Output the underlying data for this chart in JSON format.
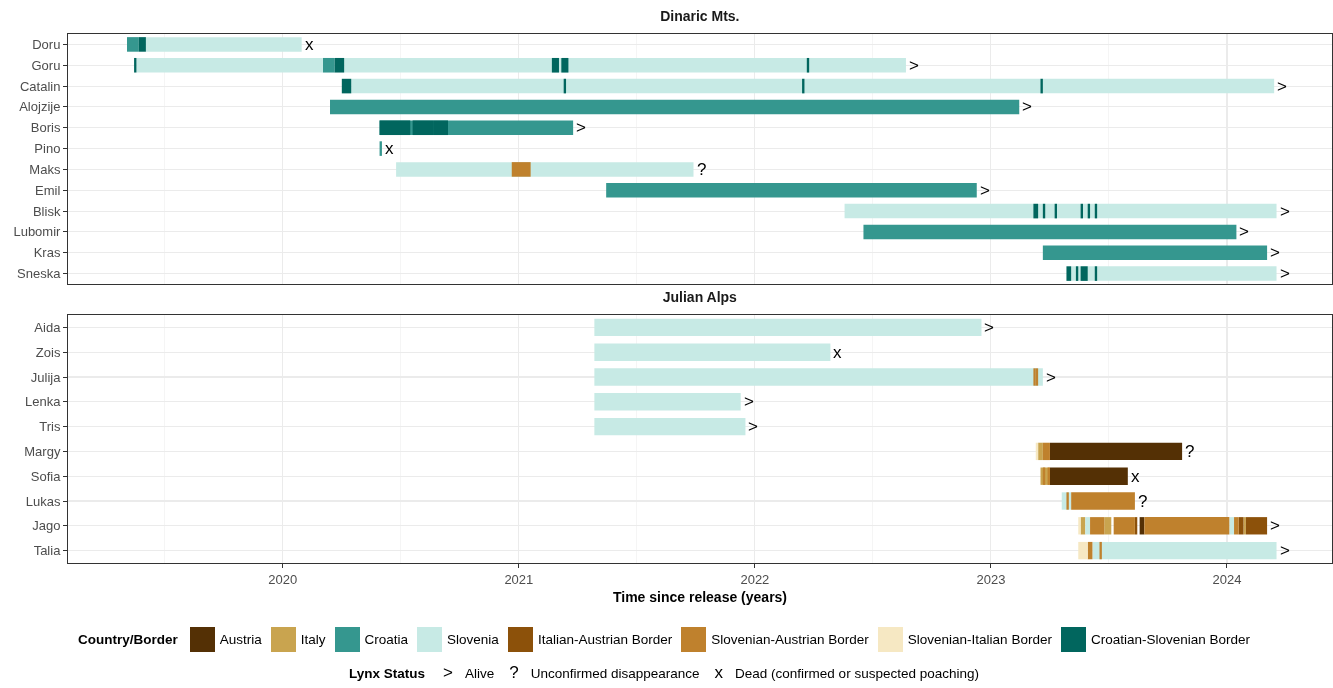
{
  "chart_data": [
    {
      "type": "bar",
      "title": "Dinaric Mts.",
      "orientation": "horizontal",
      "grid": true,
      "legend": "bottom",
      "legend_title": "Country/Border",
      "tick_labels": "y",
      "xlim": [
        2019.09,
        2024.445
      ],
      "xticks": [
        2020,
        2021,
        2022,
        2023,
        2024
      ],
      "categories": [
        "Doru",
        "Goru",
        "Catalin",
        "Alojzije",
        "Boris",
        "Pino",
        "Maks",
        "Emil",
        "Blisk",
        "Lubomir",
        "Kras",
        "Sneska"
      ],
      "series": [
        {
          "name": "Croatia",
          "color": "#35978f",
          "base": [
            2019.34,
            2020.17,
            null,
            2020.2,
            2020.41,
            2020.41,
            null,
            2021.37,
            null,
            2022.46,
            2023.22,
            null
          ],
          "values": [
            0.05,
            0.05,
            null,
            2.92,
            0.82,
            0.01,
            null,
            1.57,
            null,
            1.58,
            0.95,
            null
          ]
        },
        {
          "name": "Slovenia",
          "color": "#c7eae5",
          "base": [
            2019.42,
            2019.38,
            2020.29,
            null,
            null,
            null,
            2020.48,
            null,
            2022.38,
            null,
            null,
            2023.34
          ],
          "values": [
            0.66,
            0.79,
            3.91,
            null,
            null,
            null,
            1.26,
            null,
            1.83,
            null,
            null,
            0.87
          ]
        },
        {
          "color": "#c7eae5",
          "base": [
            null,
            2020.26,
            null,
            null,
            null,
            null,
            null,
            null,
            null,
            null,
            null,
            null
          ],
          "values": [
            null,
            2.38,
            null,
            null,
            null,
            null,
            null,
            null,
            null,
            null,
            null,
            null
          ]
        },
        {
          "name": "Slovenian-Austrian Border",
          "color": "#bf812d",
          "base": [
            null,
            null,
            null,
            null,
            null,
            null,
            2020.97,
            null,
            null,
            null,
            null,
            null
          ],
          "values": [
            null,
            null,
            null,
            null,
            null,
            null,
            0.08,
            null,
            null,
            null,
            null,
            null
          ]
        },
        {
          "name": "Croatian-Slovenian Border",
          "color": "#01665e",
          "base": [
            2019.39,
            2019.37,
            2020.25,
            null,
            2020.41,
            null,
            null,
            null,
            2023.18,
            null,
            null,
            2023.32
          ],
          "values": [
            0.03,
            0.01,
            0.04,
            null,
            0.13,
            null,
            null,
            null,
            0.02,
            null,
            null,
            0.02
          ]
        },
        {
          "color": "#01665e",
          "base": [
            null,
            2020.22,
            2021.19,
            null,
            2020.55,
            null,
            null,
            null,
            2023.22,
            null,
            null,
            2023.36
          ],
          "values": [
            null,
            0.04,
            0.01,
            null,
            0.09,
            null,
            null,
            null,
            0.01,
            null,
            null,
            0.01
          ]
        },
        {
          "color": "#01665e",
          "base": [
            null,
            2021.14,
            2022.2,
            null,
            2020.64,
            null,
            null,
            null,
            2023.27,
            null,
            null,
            2023.38
          ],
          "values": [
            null,
            0.03,
            0.01,
            null,
            0.06,
            null,
            null,
            null,
            0.01,
            null,
            null,
            0.03
          ]
        },
        {
          "color": "#01665e",
          "base": [
            null,
            2021.18,
            2023.21,
            null,
            null,
            null,
            null,
            null,
            2023.38,
            null,
            null,
            2023.44
          ],
          "values": [
            null,
            0.03,
            0.01,
            null,
            null,
            null,
            null,
            null,
            0.01,
            null,
            null,
            0.01
          ]
        },
        {
          "color": "#01665e",
          "base": [
            null,
            2022.22,
            null,
            null,
            null,
            null,
            null,
            null,
            2023.41,
            null,
            null,
            null
          ],
          "values": [
            null,
            0.01,
            null,
            null,
            null,
            null,
            null,
            null,
            0.01,
            null,
            null,
            null
          ]
        },
        {
          "color": "#01665e",
          "base": [
            null,
            null,
            null,
            null,
            null,
            null,
            null,
            null,
            2023.44,
            null,
            null,
            null
          ],
          "values": [
            null,
            null,
            null,
            null,
            null,
            null,
            null,
            null,
            0.01,
            null,
            null,
            null
          ]
        }
      ],
      "annotations": [
        {
          "text": "x",
          "x": 2020.08,
          "y": "Doru"
        },
        {
          "text": ">",
          "x": 2022.64,
          "y": "Goru"
        },
        {
          "text": ">",
          "x": 2024.2,
          "y": "Catalin"
        },
        {
          "text": ">",
          "x": 2023.12,
          "y": "Alojzije"
        },
        {
          "text": ">",
          "x": 2021.23,
          "y": "Boris"
        },
        {
          "text": "x",
          "x": 2020.42,
          "y": "Pino"
        },
        {
          "text": "?",
          "x": 2021.74,
          "y": "Maks"
        },
        {
          "text": ">",
          "x": 2022.94,
          "y": "Emil"
        },
        {
          "text": ">",
          "x": 2024.21,
          "y": "Blisk"
        },
        {
          "text": ">",
          "x": 2024.04,
          "y": "Lubomir"
        },
        {
          "text": ">",
          "x": 2024.17,
          "y": "Kras"
        },
        {
          "text": ">",
          "x": 2024.21,
          "y": "Sneska"
        }
      ]
    },
    {
      "type": "bar",
      "title": "Julian Alps",
      "xlabel": "Time since release (years)",
      "orientation": "horizontal",
      "grid": true,
      "legend": "bottom",
      "legend_title": "Lynx Status",
      "xlim": [
        2019.09,
        2024.445
      ],
      "xticks": [
        2020,
        2021,
        2022,
        2023,
        2024
      ],
      "categories": [
        "Aida",
        "Zois",
        "Julija",
        "Lenka",
        "Tris",
        "Margy",
        "Sofia",
        "Lukas",
        "Jago",
        "Talia"
      ],
      "series": [
        {
          "name": "Austria",
          "color": "#543005",
          "base": [
            null,
            null,
            null,
            null,
            null,
            2023.25,
            2023.25,
            null,
            2023.63,
            null
          ],
          "values": [
            null,
            null,
            null,
            null,
            null,
            0.56,
            0.33,
            null,
            0.02,
            null
          ]
        },
        {
          "name": "Italy",
          "color": "#c9a44f",
          "base": [
            null,
            null,
            null,
            null,
            null,
            2023.2,
            2023.21,
            null,
            2023.38,
            null
          ],
          "values": [
            null,
            null,
            null,
            null,
            null,
            0.02,
            0.04,
            null,
            0.02,
            null
          ]
        },
        {
          "color": "#c9a44f",
          "base": [
            null,
            null,
            null,
            null,
            null,
            null,
            null,
            null,
            2023.48,
            null
          ],
          "values": [
            null,
            null,
            null,
            null,
            null,
            null,
            null,
            null,
            0.03,
            null
          ]
        },
        {
          "color": "#c9a44f",
          "base": [
            null,
            null,
            null,
            null,
            null,
            null,
            null,
            null,
            2024.07,
            null
          ],
          "values": [
            null,
            null,
            null,
            null,
            null,
            null,
            null,
            null,
            0.01,
            null
          ]
        },
        {
          "name": "Slovenia",
          "color": "#c7eae5",
          "base": [
            2021.32,
            2021.32,
            2021.32,
            2021.32,
            2021.32,
            null,
            null,
            2023.3,
            2023.4,
            2023.43
          ],
          "values": [
            1.64,
            1.0,
            1.9,
            0.62,
            0.64,
            null,
            null,
            0.04,
            0.02,
            0.78
          ]
        },
        {
          "color": "#c7eae5",
          "base": [
            null,
            null,
            null,
            null,
            null,
            null,
            null,
            null,
            2024.01,
            null
          ],
          "values": [
            null,
            null,
            null,
            null,
            null,
            null,
            null,
            null,
            0.02,
            null
          ]
        },
        {
          "name": "Italian-Austrian Border",
          "color": "#8c510a",
          "base": [
            null,
            null,
            null,
            null,
            null,
            null,
            null,
            null,
            2023.61,
            null
          ],
          "values": [
            null,
            null,
            null,
            null,
            null,
            null,
            null,
            null,
            0.01,
            null
          ]
        },
        {
          "color": "#8c510a",
          "base": [
            null,
            null,
            null,
            null,
            null,
            null,
            null,
            null,
            2024.05,
            null
          ],
          "values": [
            null,
            null,
            null,
            null,
            null,
            null,
            null,
            null,
            0.02,
            null
          ]
        },
        {
          "color": "#8c510a",
          "base": [
            null,
            null,
            null,
            null,
            null,
            null,
            null,
            null,
            2024.08,
            null
          ],
          "values": [
            null,
            null,
            null,
            null,
            null,
            null,
            null,
            null,
            0.09,
            null
          ]
        },
        {
          "name": "Slovenian-Austrian Border",
          "color": "#bf812d",
          "base": [
            null,
            null,
            2023.18,
            null,
            null,
            2023.22,
            2023.22,
            2023.34,
            2023.42,
            2023.41
          ],
          "values": [
            null,
            null,
            0.01,
            null,
            null,
            0.03,
            0.01,
            0.27,
            0.06,
            0.02
          ]
        },
        {
          "color": "#bf812d",
          "base": [
            null,
            null,
            2023.19,
            null,
            null,
            null,
            2023.24,
            2023.32,
            2023.52,
            2023.46
          ],
          "values": [
            null,
            null,
            0.01,
            null,
            null,
            null,
            0.01,
            0.01,
            0.09,
            0.01
          ]
        },
        {
          "color": "#bf812d",
          "base": [
            null,
            null,
            null,
            null,
            null,
            null,
            null,
            null,
            2023.65,
            null
          ],
          "values": [
            null,
            null,
            null,
            null,
            null,
            null,
            null,
            null,
            0.36,
            null
          ]
        },
        {
          "color": "#bf812d",
          "base": [
            null,
            null,
            null,
            null,
            null,
            null,
            null,
            null,
            2024.03,
            null
          ],
          "values": [
            null,
            null,
            null,
            null,
            null,
            null,
            null,
            null,
            0.02,
            null
          ]
        },
        {
          "name": "Slovenian-Italian Border",
          "color": "#f6e8c3",
          "base": [
            null,
            null,
            null,
            null,
            null,
            2023.19,
            null,
            null,
            2023.37,
            2023.37
          ],
          "values": [
            null,
            null,
            null,
            null,
            null,
            0.01,
            null,
            null,
            0.01,
            0.04
          ]
        }
      ],
      "annotations": [
        {
          "text": ">",
          "x": 2022.96,
          "y": "Aida"
        },
        {
          "text": "x",
          "x": 2022.32,
          "y": "Zois"
        },
        {
          "text": ">",
          "x": 2023.22,
          "y": "Julija"
        },
        {
          "text": ">",
          "x": 2021.94,
          "y": "Lenka"
        },
        {
          "text": ">",
          "x": 2021.96,
          "y": "Tris"
        },
        {
          "text": "?",
          "x": 2023.81,
          "y": "Margy"
        },
        {
          "text": "x",
          "x": 2023.58,
          "y": "Sofia"
        },
        {
          "text": "?",
          "x": 2023.61,
          "y": "Lukas"
        },
        {
          "text": ">",
          "x": 2024.17,
          "y": "Jago"
        },
        {
          "text": ">",
          "x": 2024.21,
          "y": "Talia"
        },
        ">",
        "Alive",
        "?",
        "Unconfirmed disappearance",
        "x",
        "Dead (confirmed or suspected poaching)"
      ]
    }
  ]
}
